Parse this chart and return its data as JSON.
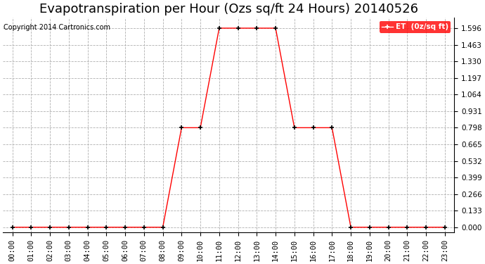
{
  "title": "Evapotranspiration per Hour (Ozs sq/ft 24 Hours) 20140526",
  "copyright": "Copyright 2014 Cartronics.com",
  "legend_label": "ET  (0z/sq ft)",
  "x_hours": [
    0,
    1,
    2,
    3,
    4,
    5,
    6,
    7,
    8,
    9,
    10,
    11,
    12,
    13,
    14,
    15,
    16,
    17,
    18,
    19,
    20,
    21,
    22,
    23
  ],
  "y_values": [
    0,
    0,
    0,
    0,
    0,
    0,
    0,
    0,
    0,
    0.798,
    0.798,
    1.596,
    1.596,
    1.596,
    1.596,
    0.798,
    0.798,
    0.798,
    0,
    0,
    0,
    0,
    0,
    0
  ],
  "line_color": "#ff0000",
  "marker": "+",
  "marker_color": "#000000",
  "bg_color": "#ffffff",
  "grid_color": "#b0b0b0",
  "yticks": [
    0.0,
    0.133,
    0.266,
    0.399,
    0.532,
    0.665,
    0.798,
    0.931,
    1.064,
    1.197,
    1.33,
    1.463,
    1.596
  ],
  "ylim": [
    -0.04,
    1.68
  ],
  "xlim": [
    -0.5,
    23.5
  ],
  "title_fontsize": 13,
  "legend_bg": "#ff0000",
  "legend_text_color": "#ffffff",
  "copyright_fontsize": 7,
  "tick_fontsize": 7.5,
  "ytick_fontsize": 7.5
}
